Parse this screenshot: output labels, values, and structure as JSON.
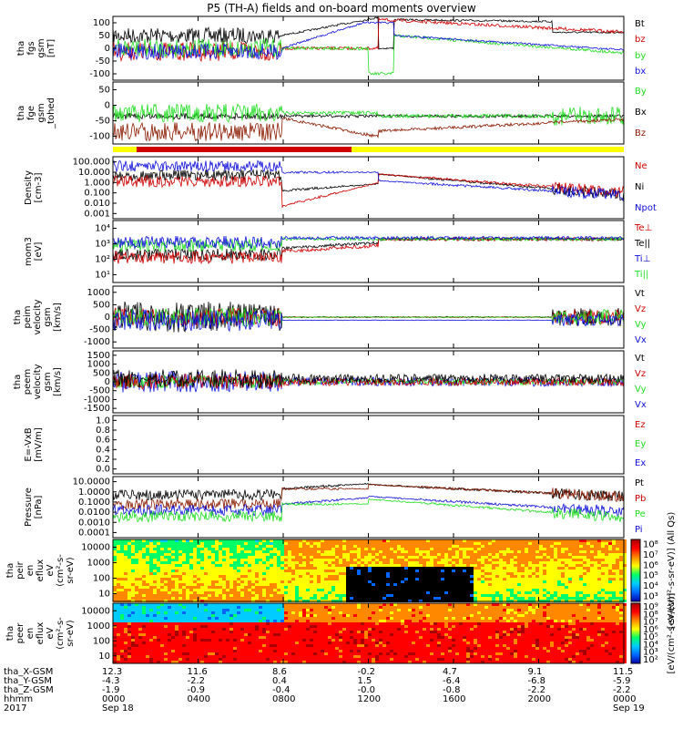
{
  "title": "P5 (TH-A) fields and on-board moments overview",
  "colors": {
    "black": "#000000",
    "red": "#d00000",
    "green": "#22dd22",
    "blue": "#1010dd",
    "darkred": "#8b1a00",
    "yellow": "#ffff00"
  },
  "chart_data": [
    {
      "type": "line",
      "panel": 1,
      "ylabel": [
        "tha",
        "fgs",
        "gsm",
        "[nT]"
      ],
      "yticks": [
        "100",
        "50",
        "0",
        "-50",
        "-100"
      ],
      "ylim": [
        -100,
        100
      ],
      "series": [
        {
          "name": "Bt",
          "color": "black"
        },
        {
          "name": "bz",
          "color": "red"
        },
        {
          "name": "by",
          "color": "green"
        },
        {
          "name": "bx",
          "color": "blue"
        }
      ]
    },
    {
      "type": "line",
      "panel": 2,
      "ylabel": [
        "tha",
        "fge",
        "gsm",
        "_tohed"
      ],
      "yticks": [
        "50",
        "0",
        "-50",
        "-100"
      ],
      "ylim": [
        -125,
        75
      ],
      "series": [
        {
          "name": "By",
          "color": "green"
        },
        {
          "name": "Bx",
          "color": "black"
        },
        {
          "name": "Bz",
          "color": "darkred"
        }
      ]
    },
    {
      "type": "line",
      "panel": 3,
      "ylabel": [
        "Density",
        "[cm-3]"
      ],
      "yticks": [
        "100.000",
        "10.000",
        "1.000",
        "0.100",
        "0.010",
        "0.001"
      ],
      "series": [
        {
          "name": "Ne",
          "color": "red"
        },
        {
          "name": "Ni",
          "color": "black"
        },
        {
          "name": "Npot",
          "color": "blue"
        }
      ]
    },
    {
      "type": "line",
      "panel": 4,
      "ylabel": [
        "mom3",
        "[eV]"
      ],
      "yticks": [
        "10⁴",
        "10³",
        "10²",
        "10¹"
      ],
      "series": [
        {
          "name": "Te⊥",
          "color": "red"
        },
        {
          "name": "Te||",
          "color": "black"
        },
        {
          "name": "Ti⊥",
          "color": "blue"
        },
        {
          "name": "Ti||",
          "color": "green"
        }
      ]
    },
    {
      "type": "line",
      "panel": 5,
      "ylabel": [
        "tha",
        "peim",
        "velocity",
        "gsm",
        "[km/s]"
      ],
      "yticks": [
        "1000",
        "500",
        "0",
        "-500",
        "-1000"
      ],
      "ylim": [
        -1000,
        1000
      ],
      "series": [
        {
          "name": "Vt",
          "color": "black"
        },
        {
          "name": "Vz",
          "color": "red"
        },
        {
          "name": "Vy",
          "color": "green"
        },
        {
          "name": "Vx",
          "color": "blue"
        }
      ]
    },
    {
      "type": "line",
      "panel": 6,
      "ylabel": [
        "tha",
        "peem",
        "velocity",
        "gsm",
        "[km/s]"
      ],
      "yticks": [
        "1500",
        "1000",
        "500",
        "0",
        "-500",
        "-1000",
        "-1500"
      ],
      "ylim": [
        -1500,
        1500
      ],
      "series": [
        {
          "name": "Vt",
          "color": "black"
        },
        {
          "name": "Vz",
          "color": "red"
        },
        {
          "name": "Vy",
          "color": "green"
        },
        {
          "name": "Vx",
          "color": "blue"
        }
      ]
    },
    {
      "type": "line",
      "panel": 7,
      "ylabel": [
        "E=-VxB",
        "[mV/m]"
      ],
      "yticks": [
        "1.0",
        "0.8",
        "0.6",
        "0.4",
        "0.2",
        "0.0"
      ],
      "ylim": [
        0,
        1
      ],
      "series": [
        {
          "name": "Ez",
          "color": "red"
        },
        {
          "name": "Ey",
          "color": "green"
        },
        {
          "name": "Ex",
          "color": "blue"
        }
      ]
    },
    {
      "type": "line",
      "panel": 8,
      "ylabel": [
        "Pressure",
        "[nPa]"
      ],
      "yticks": [
        "10.0000",
        "1.0000",
        "0.1000",
        "0.0100",
        "0.0010",
        "0.0001"
      ],
      "series": [
        {
          "name": "Pt",
          "color": "black"
        },
        {
          "name": "Pb",
          "color": "red"
        },
        {
          "name": "Pe",
          "color": "green"
        },
        {
          "name": "Pi",
          "color": "blue"
        }
      ]
    },
    {
      "type": "heatmap",
      "panel": 9,
      "ylabel": [
        "tha",
        "peir",
        "en",
        "eflux",
        "eV",
        "(cm²-s-",
        "sr-eV)"
      ],
      "yticks": [
        "10000",
        "1000",
        "100",
        "10"
      ],
      "colorbar": {
        "ticks": [
          "10⁸",
          "10⁷",
          "10⁶",
          "10⁵",
          "10⁴",
          "10³"
        ],
        "label": "[eV/(cm²-s-sr-eV)] (All Qs)"
      }
    },
    {
      "type": "heatmap",
      "panel": 10,
      "ylabel": [
        "tha",
        "peer",
        "en",
        "eflux",
        "eV",
        "(cm²-s-",
        "sr-eV)"
      ],
      "yticks": [
        "10000",
        "1000",
        "100",
        "10"
      ],
      "colorbar": {
        "ticks": [
          "10⁹",
          "10⁸",
          "10⁷",
          "10⁶",
          "10⁵",
          "10⁴",
          "10³",
          "10²"
        ],
        "label": "[eV/(cm²-s-sr-eV)]"
      }
    }
  ],
  "xaxis": {
    "rows": [
      {
        "label": "tha_X-GSM",
        "values": [
          "12.3",
          "11.6",
          "8.6",
          "-0.2",
          "4.7",
          "9.1",
          "11.5"
        ]
      },
      {
        "label": "tha_Y-GSM",
        "values": [
          "-4.3",
          "-2.2",
          "0.4",
          "1.5",
          "-6.4",
          "-6.8",
          "-5.9"
        ]
      },
      {
        "label": "tha_Z-GSM",
        "values": [
          "-1.9",
          "-0.9",
          "-0.4",
          "-0.0",
          "-0.8",
          "-2.2",
          "-2.2"
        ]
      },
      {
        "label": "hhmm",
        "values": [
          "0000",
          "0400",
          "0800",
          "1200",
          "1600",
          "2000",
          "0000"
        ]
      },
      {
        "label": "2017",
        "values": [
          "Sep 18",
          "",
          "",
          "",
          "",
          "",
          "Sep 19"
        ]
      }
    ]
  }
}
